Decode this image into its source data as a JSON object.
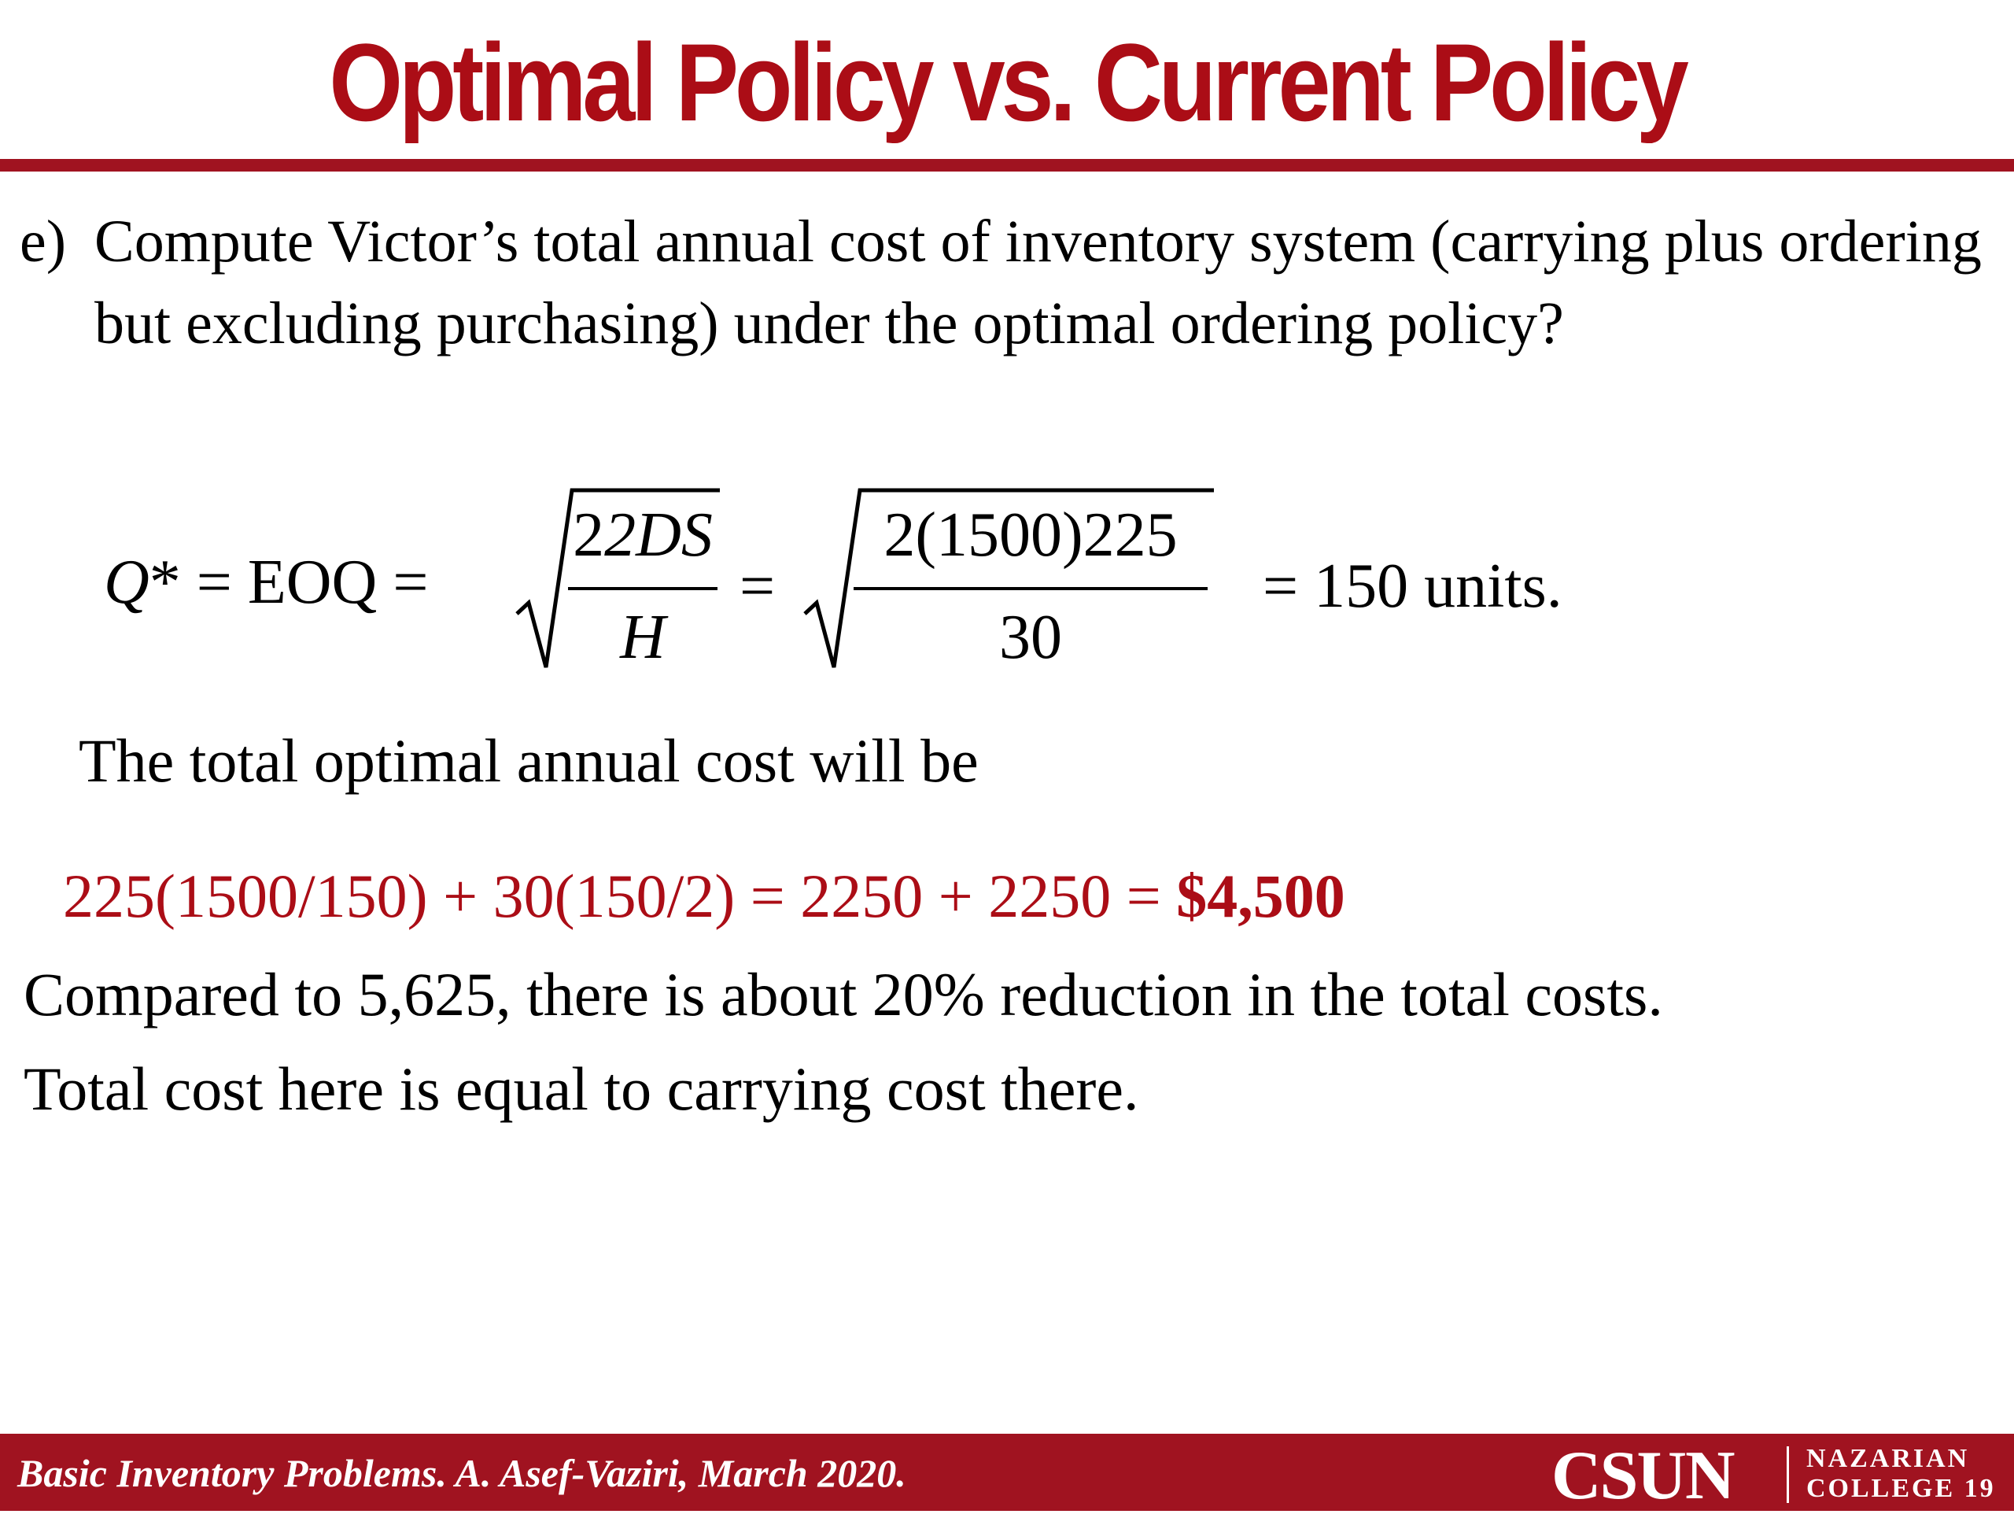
{
  "slide": {
    "title": "Optimal Policy vs. Current Policy",
    "question_label": "e)",
    "question_text": "Compute Victor’s total annual cost of inventory system (carrying plus ordering but excluding purchasing) under the optimal  ordering policy?"
  },
  "formula": {
    "lhs_q": "Q",
    "lhs_rest": "* = EOQ =",
    "frac1_num": "2DS",
    "frac1_den": "H",
    "equals": "=",
    "frac2_num": "2(1500)225",
    "frac2_den": "30",
    "result": "=  150 units."
  },
  "body": {
    "intro": "The total optimal annual cost will be",
    "calc_main": "225(1500/150) + 30(150/2) = 2250 + 2250 = ",
    "calc_total": "$4,500",
    "comparison": "Compared to 5,625, there is about 20% reduction in the total costs.",
    "note": "Total cost here is equal to carrying cost there."
  },
  "footer": {
    "citation": "Basic Inventory Problems. A. Asef-Vaziri, March 2020.",
    "logo_main": "CSUN",
    "logo_sub_line1": "NAZARIAN",
    "logo_sub_line2": "COLLEGE",
    "page_number": "19"
  },
  "colors": {
    "accent_red": "#ab0d16",
    "footer_red": "#a01320",
    "text": "#000000",
    "background": "#ffffff"
  }
}
